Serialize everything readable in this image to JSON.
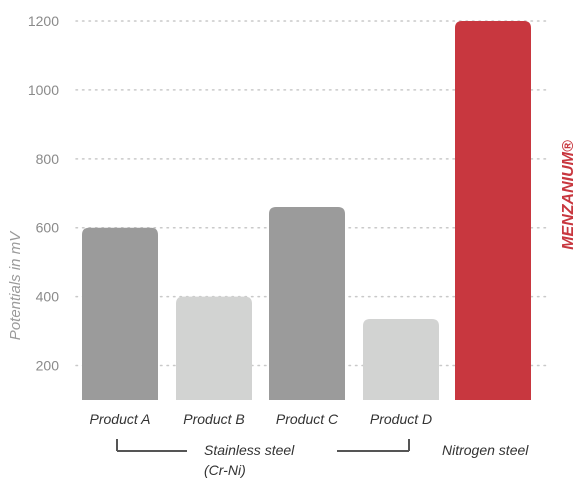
{
  "chart_data": {
    "type": "bar",
    "categories": [
      "Product A",
      "Product B",
      "Product C",
      "Product D",
      ""
    ],
    "values": [
      600,
      400,
      660,
      335,
      1200
    ],
    "bar_colors": [
      "#9b9b9b",
      "#d2d3d2",
      "#9b9b9b",
      "#d2d3d2",
      "#c8373f"
    ],
    "ylabel": "Potentials in mV",
    "yticks": [
      200,
      400,
      600,
      800,
      1000,
      1200
    ],
    "ylim": [
      100,
      1200
    ],
    "grid": "horizontal dotted",
    "groups": [
      {
        "label_line1": "Stainless steel",
        "label_line2": "(Cr-Ni)"
      },
      {
        "label_line1": "Nitrogen steel"
      }
    ],
    "brand_label": "MENZANIUM®",
    "brand_color": "#c8373f"
  }
}
